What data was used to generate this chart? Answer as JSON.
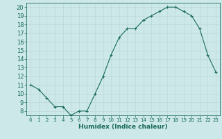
{
  "x": [
    0,
    1,
    2,
    3,
    4,
    5,
    6,
    7,
    8,
    9,
    10,
    11,
    12,
    13,
    14,
    15,
    16,
    17,
    18,
    19,
    20,
    21,
    22,
    23
  ],
  "y": [
    11,
    10.5,
    9.5,
    8.5,
    8.5,
    7.5,
    8,
    8,
    10,
    12,
    14.5,
    16.5,
    17.5,
    17.5,
    18.5,
    19,
    19.5,
    20,
    20,
    19.5,
    19,
    17.5,
    14.5,
    12.5
  ],
  "line_color": "#1a6b5a",
  "marker_color": "#1a6b5a",
  "bg_color": "#cce8e8",
  "grid_color": "#b8d4d4",
  "xlabel": "Humidex (Indice chaleur)",
  "xlim": [
    -0.5,
    23.5
  ],
  "ylim": [
    7.5,
    20.5
  ],
  "yticks": [
    8,
    9,
    10,
    11,
    12,
    13,
    14,
    15,
    16,
    17,
    18,
    19,
    20
  ],
  "xticks": [
    0,
    1,
    2,
    3,
    4,
    5,
    6,
    7,
    8,
    9,
    10,
    11,
    12,
    13,
    14,
    15,
    16,
    17,
    18,
    19,
    20,
    21,
    22,
    23
  ],
  "tick_color": "#1a6b5a",
  "xlabel_fontsize": 6.5,
  "ytick_fontsize": 6,
  "xtick_fontsize": 5,
  "axis_color": "#1a6b5a",
  "line_width": 0.8,
  "marker_size": 2.0
}
